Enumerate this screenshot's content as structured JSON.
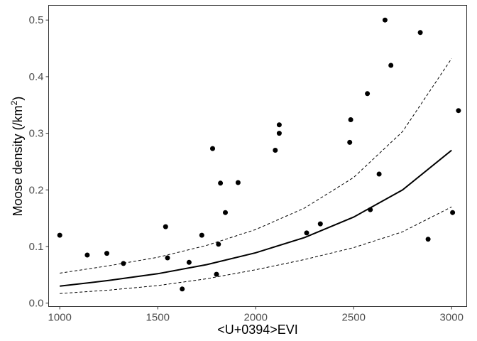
{
  "chart_data": {
    "type": "scatter",
    "xlabel": "<U+0394>EVI",
    "ylabel": {
      "text": "Moose density (/km",
      "sup": "2",
      "close": ")"
    },
    "xlim": [
      943,
      3077
    ],
    "ylim": [
      -0.006,
      0.526
    ],
    "x_ticks": [
      1000,
      1500,
      2000,
      2500,
      3000
    ],
    "y_ticks": [
      0.0,
      0.1,
      0.2,
      0.3,
      0.4,
      0.5
    ],
    "y_tick_labels": [
      "0.0",
      "0.1",
      "0.2",
      "0.3",
      "0.4",
      "0.5"
    ],
    "grid": false,
    "points": [
      {
        "x": 1000,
        "y": 0.12
      },
      {
        "x": 1140,
        "y": 0.085
      },
      {
        "x": 1240,
        "y": 0.088
      },
      {
        "x": 1325,
        "y": 0.07
      },
      {
        "x": 1540,
        "y": 0.135
      },
      {
        "x": 1550,
        "y": 0.08
      },
      {
        "x": 1625,
        "y": 0.025
      },
      {
        "x": 1660,
        "y": 0.072
      },
      {
        "x": 1725,
        "y": 0.12
      },
      {
        "x": 1780,
        "y": 0.273
      },
      {
        "x": 1800,
        "y": 0.051
      },
      {
        "x": 1810,
        "y": 0.104
      },
      {
        "x": 1820,
        "y": 0.212
      },
      {
        "x": 1845,
        "y": 0.16
      },
      {
        "x": 1910,
        "y": 0.213
      },
      {
        "x": 2100,
        "y": 0.27
      },
      {
        "x": 2120,
        "y": 0.3
      },
      {
        "x": 2120,
        "y": 0.315
      },
      {
        "x": 2260,
        "y": 0.124
      },
      {
        "x": 2330,
        "y": 0.14
      },
      {
        "x": 2480,
        "y": 0.284
      },
      {
        "x": 2485,
        "y": 0.324
      },
      {
        "x": 2570,
        "y": 0.37
      },
      {
        "x": 2585,
        "y": 0.165
      },
      {
        "x": 2630,
        "y": 0.228
      },
      {
        "x": 2660,
        "y": 0.5
      },
      {
        "x": 2690,
        "y": 0.42
      },
      {
        "x": 2840,
        "y": 0.478
      },
      {
        "x": 2880,
        "y": 0.113
      },
      {
        "x": 3005,
        "y": 0.16
      },
      {
        "x": 3035,
        "y": 0.34
      }
    ],
    "fit_line": {
      "x": [
        1000,
        1250,
        1500,
        1750,
        2000,
        2250,
        2500,
        2750,
        3000
      ],
      "y": [
        0.03,
        0.04,
        0.052,
        0.068,
        0.089,
        0.116,
        0.152,
        0.2,
        0.27
      ]
    },
    "ci_upper": {
      "x": [
        1000,
        1250,
        1500,
        1750,
        2000,
        2250,
        2500,
        2750,
        3000
      ],
      "y": [
        0.053,
        0.066,
        0.081,
        0.102,
        0.13,
        0.168,
        0.222,
        0.303,
        0.432
      ]
    },
    "ci_lower": {
      "x": [
        1000,
        1250,
        1500,
        1750,
        2000,
        2250,
        2500,
        2750,
        3000
      ],
      "y": [
        0.017,
        0.023,
        0.031,
        0.043,
        0.059,
        0.077,
        0.098,
        0.126,
        0.17
      ]
    },
    "colors": {
      "points": "#000000",
      "line": "#000000",
      "axis": "#333333",
      "tick_text": "#4d4d4d"
    }
  }
}
